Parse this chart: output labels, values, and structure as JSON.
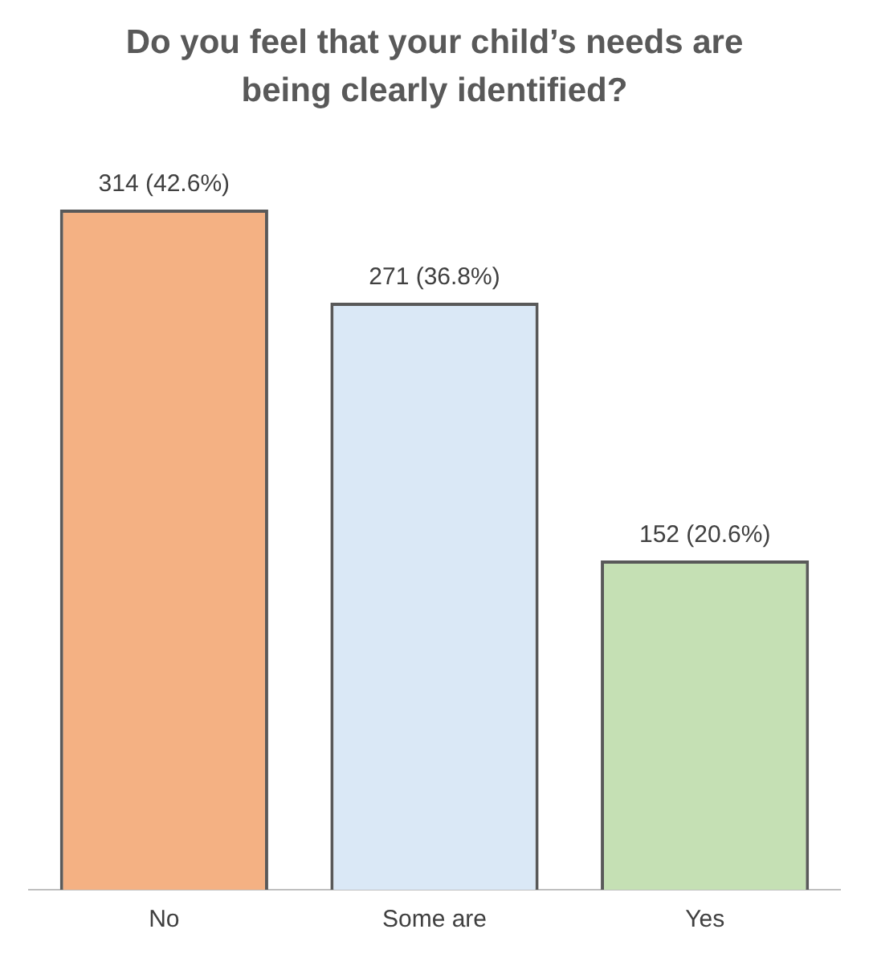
{
  "chart_data": {
    "type": "bar",
    "title": "Do you feel that your child’s needs are being clearly identified?",
    "categories": [
      "No",
      "Some are",
      "Yes"
    ],
    "values": [
      314,
      271,
      152
    ],
    "colors": [
      "#f4b183",
      "#dae8f6",
      "#c5e0b4"
    ],
    "value_labels": [
      "314 (42.6%)",
      "271 (36.8%)",
      "152 (20.6%)"
    ],
    "grid": false,
    "legend": false
  }
}
